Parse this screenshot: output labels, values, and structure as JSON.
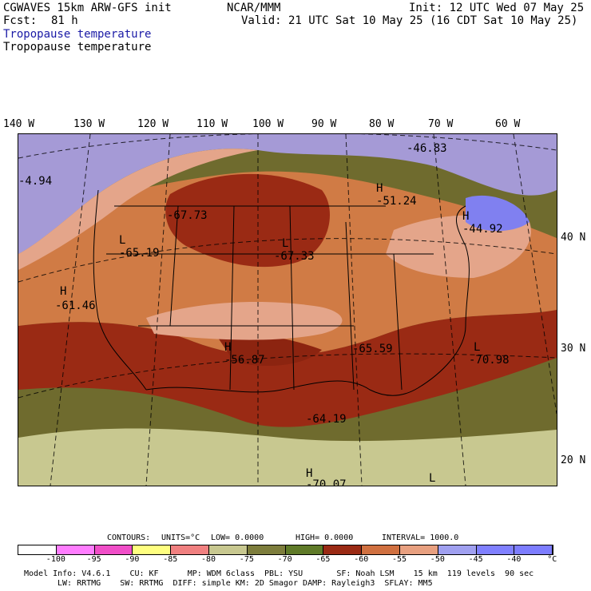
{
  "header": {
    "model": "CGWAVES 15km ARW-GFS init",
    "org": "NCAR/MMM",
    "init": "Init: 12 UTC Wed 07 May 25",
    "fcst_label": "Fcst:",
    "fcst_value": "81 h",
    "valid": "Valid: 21 UTC Sat 10 May 25 (16 CDT Sat 10 May 25)",
    "field_title_colored": "Tropopause temperature",
    "field_title": "Tropopause temperature"
  },
  "longitude_labels": [
    "140 W",
    "130 W",
    "120 W",
    "110 W",
    "100 W",
    "90 W",
    "80 W",
    "70 W",
    "60 W"
  ],
  "latitude_labels": [
    "40 N",
    "30 N",
    "20 N"
  ],
  "map_labels": [
    {
      "text": "-4.94"
    },
    {
      "text": "-46.83"
    },
    {
      "text": "H"
    },
    {
      "text": "-51.24"
    },
    {
      "text": "H"
    },
    {
      "text": "-44.92"
    },
    {
      "text": "-67.73"
    },
    {
      "text": "L"
    },
    {
      "text": "-65.19"
    },
    {
      "text": "L"
    },
    {
      "text": "-67.33"
    },
    {
      "text": "H"
    },
    {
      "text": "-61.46"
    },
    {
      "text": "H"
    },
    {
      "text": "-56.87"
    },
    {
      "text": "-65.59"
    },
    {
      "text": "L"
    },
    {
      "text": "-70.98"
    },
    {
      "text": "-64.19"
    },
    {
      "text": "H"
    },
    {
      "text": "-70.07"
    },
    {
      "text": "L"
    }
  ],
  "contours": {
    "label": "CONTOURS:",
    "units": "UNITS=°C",
    "low": "LOW= 0.0000",
    "high": "HIGH= 0.0000",
    "interval": "INTERVAL= 1000.0"
  },
  "colorbar": {
    "colors": [
      "#ffffff",
      "#ff7dff",
      "#f04ec8",
      "#ffff80",
      "#f08080",
      "#c8c890",
      "#7d7d3c",
      "#5f7a28",
      "#9a2a14",
      "#d07040",
      "#e8a080",
      "#a0a0f0",
      "#8080ff",
      "#7d7dff"
    ],
    "ticks": [
      "-100",
      "-95",
      "-90",
      "-85",
      "-80",
      "-75",
      "-70",
      "-65",
      "-60",
      "-55",
      "-50",
      "-45",
      "-40",
      "°C"
    ]
  },
  "footer": {
    "line1": "Model Info: V4.6.1    CU: KF      MP: WDM 6class  PBL: YSU       SF: Noah LSM    15 km  119 levels  90 sec",
    "line2": "LW: RRTMG    SW: RRTMG  DIFF: simple KM: 2D Smagor DAMP: Rayleigh3  SFLAY: MM5"
  }
}
